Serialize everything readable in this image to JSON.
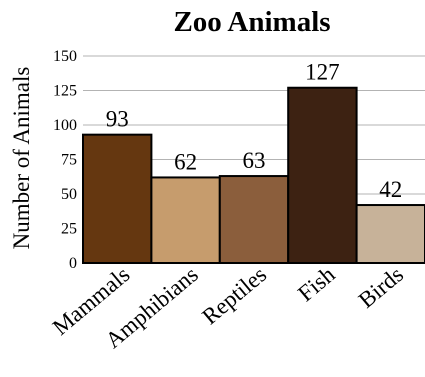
{
  "chart_data": {
    "type": "bar",
    "title": "Zoo Animals",
    "xlabel": "",
    "ylabel": "Number of Animals",
    "categories": [
      "Mammals",
      "Amphibians",
      "Reptiles",
      "Fish",
      "Birds"
    ],
    "values": [
      93,
      62,
      63,
      127,
      42
    ],
    "ylim": [
      0,
      150
    ],
    "yticks": [
      0,
      25,
      50,
      75,
      100,
      125,
      150
    ],
    "grid": true,
    "colors": [
      "#653710",
      "#c69c6d",
      "#8b5e3c",
      "#3d2212",
      "#c7b299"
    ]
  }
}
